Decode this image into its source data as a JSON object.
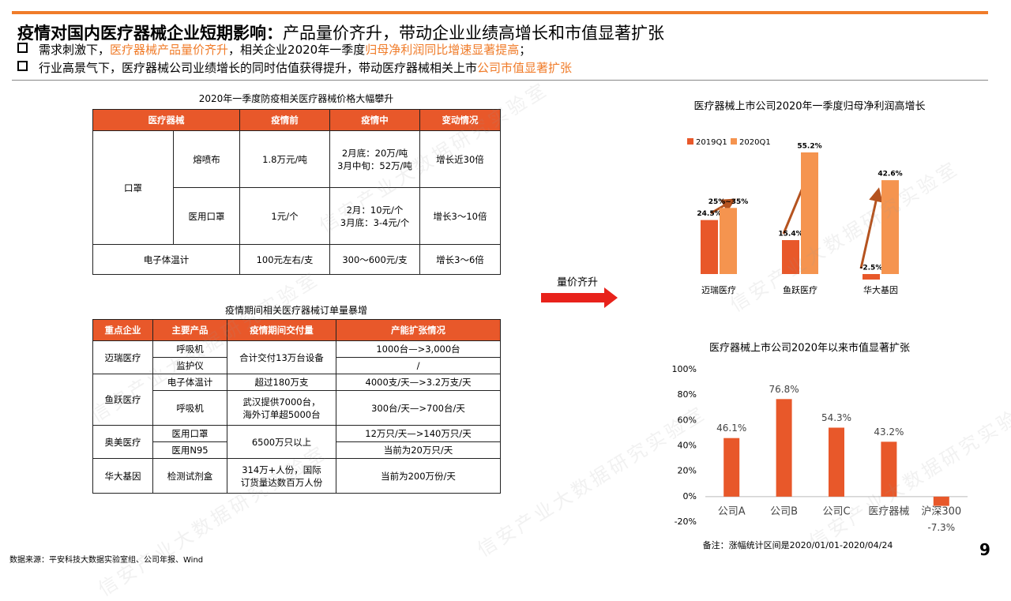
{
  "header": {
    "title_bold": "疫情对国内医疗器械企业短期影响：",
    "title_rest": "产品量价齐升，带动企业业绩高增长和市值显著扩张",
    "highlight_color": "#f07c2a",
    "bullets": [
      [
        "需求刺激下，",
        "医疗器械产品量价齐升",
        "，相关企业2020年一季度",
        "归母净利润同比增速显著提高",
        "；"
      ],
      [
        "行业高景气下，医疗器械公司业绩增长的同时估值获得提升，带动医疗器械相关上市",
        "公司市值显著扩张"
      ]
    ]
  },
  "table1": {
    "title": "2020年一季度防疫相关医疗器械价格大幅攀升",
    "header": [
      "医疗器械",
      "疫情前",
      "疫情中",
      "变动情况"
    ],
    "rows": [
      [
        "口罩",
        "熔喷布",
        "1.8万元/吨",
        [
          "2月底：20万/吨",
          "3月中旬：52万/吨"
        ],
        "增长近30倍"
      ],
      [
        "医用口罩",
        "1元/个",
        [
          "2月：10元/个",
          "3月底：3-4元/个"
        ],
        "增长3～10倍"
      ],
      [
        "电子体温计",
        "100元左右/支",
        "300～600元/支",
        "增长3～6倍"
      ]
    ]
  },
  "table2": {
    "title": "疫情期间相关医疗器械订单量暴增",
    "header": [
      "重点企业",
      "主要产品",
      "疫情期间交付量",
      "产能扩张情况"
    ],
    "rows": [
      [
        "迈瑞医疗",
        "呼吸机",
        "合计交付13万台设备",
        "1000台—>3,000台"
      ],
      [
        "监护仪",
        "/"
      ],
      [
        "鱼跃医疗",
        "电子体温计",
        "超过180万支",
        "4000支/天—>3.2万支/天"
      ],
      [
        "呼吸机",
        [
          "武汉提供7000台，",
          "海外订单超5000台"
        ],
        "300台/天—>700台/天"
      ],
      [
        "奥美医疗",
        "医用口罩",
        "6500万只以上",
        "12万只/天—>140万只/天"
      ],
      [
        "医用N95",
        "当前为20万只/天"
      ],
      [
        "华大基因",
        "检测试剂盒",
        [
          "314万+人份，国际",
          "订货量达数百万人份"
        ],
        "当前为200万份/天"
      ]
    ]
  },
  "arrow_label": "量价齐升",
  "charts": [
    {
      "type": "grouped-bar",
      "title": "医疗器械上市公司2020年一季度归母净利润高增长",
      "categories": [
        "迈瑞医疗",
        "鱼跃医疗",
        "华大基因"
      ],
      "series": [
        {
          "name": "2019Q1",
          "color": "#e8582a",
          "values": [
            24.5,
            15.4,
            -2.5
          ],
          "value_labels": [
            "24.5%",
            "15.4%",
            "-2.5%"
          ]
        },
        {
          "name": "2020Q1",
          "color": "#f5944f",
          "values": [
            30,
            55.2,
            42.6
          ],
          "value_labels": [
            "25%~35%",
            "55.2%",
            "42.6%"
          ]
        }
      ]
    },
    {
      "type": "bar",
      "title": "医疗器械上市公司2020年以来市值显著扩张",
      "categories": [
        "公司A",
        "公司B",
        "公司C",
        "医疗器械",
        "沪深300"
      ],
      "color": "#e8582a",
      "values": [
        46.1,
        76.8,
        54.3,
        43.2,
        -7.3
      ],
      "value_labels": [
        "46.1%",
        "76.8%",
        "54.3%",
        "43.2%",
        "-7.3%"
      ],
      "ylim": [
        -20,
        100
      ],
      "yticks": [
        {
          "value": -20,
          "label": "-20%"
        },
        {
          "value": 0,
          "label": "0%"
        },
        {
          "value": 20,
          "label": "20%"
        },
        {
          "value": 40,
          "label": "40%"
        },
        {
          "value": 60,
          "label": "60%"
        },
        {
          "value": 80,
          "label": "80%"
        },
        {
          "value": 100,
          "label": "100%"
        }
      ],
      "note": "备注：涨幅统计区间是2020/01/01-2020/04/24"
    }
  ],
  "source": "数据来源：平安科技大数据实验室组、公司年报、Wind",
  "page_number": "9",
  "watermark": "信安产业大数据研究实验室"
}
